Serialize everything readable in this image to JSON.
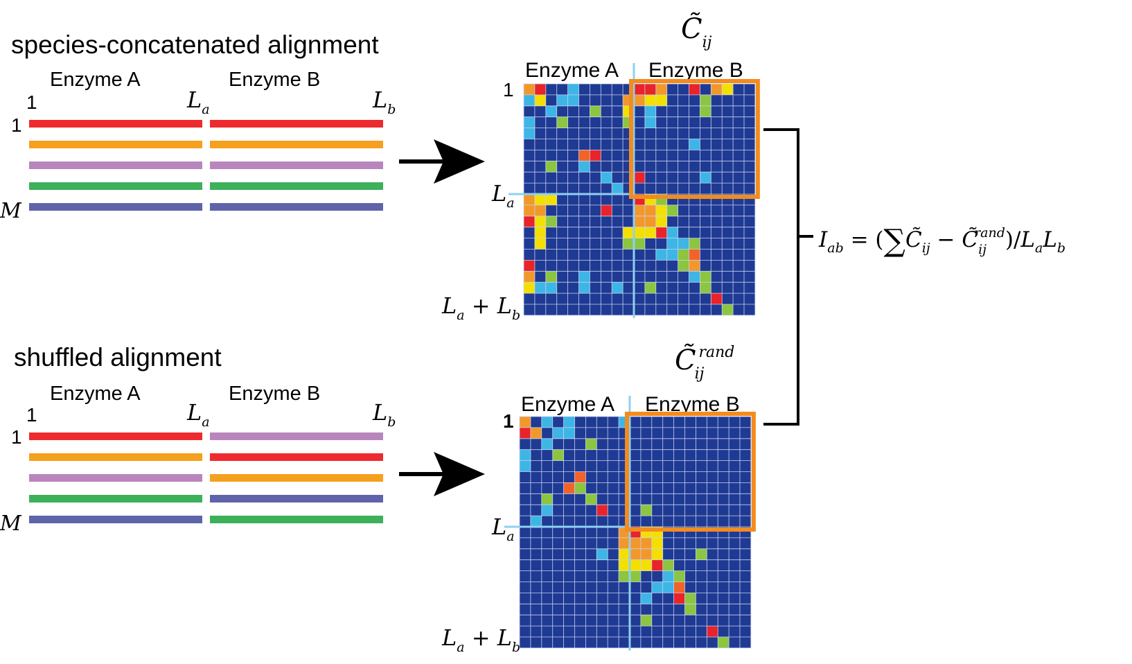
{
  "colors": {
    "red": "#ee2a2e",
    "orange": "#f5a01e",
    "violet": "#b886bd",
    "green": "#3cb15a",
    "indigo": "#5e63aa",
    "matrix_bg": "#1f3a93",
    "cell_red": "#e8232a",
    "cell_orange": "#f2982a",
    "cell_yellow": "#f4e000",
    "cell_cyan": "#3db6e6",
    "cell_green": "#8cc540",
    "cell_redorange": "#f2632a",
    "highlight": "#f28c1e",
    "divider": "#8fd0f0"
  },
  "top_panel": {
    "title": "species-concatenated alignment",
    "enzyme_a": "Enzyme A",
    "enzyme_b": "Enzyme B",
    "col_start": "1",
    "row_start": "1",
    "row_end": "M",
    "la": "L",
    "la_sub": "a",
    "lb": "L",
    "lb_sub": "b",
    "rows_a": [
      "red",
      "orange",
      "violet",
      "green",
      "indigo"
    ],
    "rows_b": [
      "red",
      "orange",
      "violet",
      "green",
      "indigo"
    ]
  },
  "bottom_panel": {
    "title": "shuffled alignment",
    "enzyme_a": "Enzyme A",
    "enzyme_b": "Enzyme B",
    "col_start": "1",
    "row_start": "1",
    "row_end": "M",
    "la": "L",
    "la_sub": "a",
    "lb": "L",
    "lb_sub": "b",
    "rows_a": [
      "red",
      "orange",
      "violet",
      "green",
      "indigo"
    ],
    "rows_b": [
      "violet",
      "red",
      "orange",
      "indigo",
      "green"
    ]
  },
  "top_matrix": {
    "symbol": "C̃",
    "sub": "ij",
    "sup": "",
    "enzyme_a": "Enzyme A",
    "enzyme_b": "Enzyme B",
    "start": "1",
    "la": "L",
    "la_sub": "a",
    "end_l1": "L",
    "end_sub1": "a",
    "end_plus": " + ",
    "end_l2": "L",
    "end_sub2": "b"
  },
  "bottom_matrix": {
    "symbol": "C̃",
    "sub": "ij",
    "sup": "rand",
    "enzyme_a": "Enzyme A",
    "enzyme_b": "Enzyme B",
    "start": "1",
    "la": "L",
    "la_sub": "a",
    "end_l1": "L",
    "end_sub1": "a",
    "end_plus": " + ",
    "end_l2": "L",
    "end_sub2": "b"
  },
  "formula": {
    "lhs": "I",
    "lhs_sub": "ab",
    "eq": " = (",
    "sum": "∑",
    "c1": "C̃",
    "c1_sub": "ij",
    "minus": " − ",
    "c2": "C̃",
    "c2_sub": "ij",
    "c2_sup": "rand",
    "close": ")/",
    "la": "L",
    "la_sub": "a",
    "lb": "L",
    "lb_sub": "b"
  },
  "top_cells": [
    [
      0,
      0,
      "cell_orange"
    ],
    [
      0,
      1,
      "cell_red"
    ],
    [
      0,
      4,
      "cell_cyan"
    ],
    [
      0,
      10,
      "cell_red"
    ],
    [
      0,
      11,
      "cell_red"
    ],
    [
      0,
      12,
      "cell_orange"
    ],
    [
      0,
      15,
      "cell_red"
    ],
    [
      0,
      17,
      "cell_orange"
    ],
    [
      0,
      18,
      "cell_yellow"
    ],
    [
      1,
      0,
      "cell_cyan"
    ],
    [
      1,
      1,
      "cell_yellow"
    ],
    [
      1,
      3,
      "cell_cyan"
    ],
    [
      1,
      4,
      "cell_cyan"
    ],
    [
      1,
      9,
      "cell_orange"
    ],
    [
      1,
      10,
      "cell_orange"
    ],
    [
      1,
      11,
      "cell_yellow"
    ],
    [
      1,
      12,
      "cell_yellow"
    ],
    [
      1,
      16,
      "cell_green"
    ],
    [
      2,
      2,
      "cell_cyan"
    ],
    [
      2,
      6,
      "cell_green"
    ],
    [
      2,
      9,
      "cell_yellow"
    ],
    [
      2,
      11,
      "cell_cyan"
    ],
    [
      2,
      16,
      "cell_green"
    ],
    [
      3,
      0,
      "cell_cyan"
    ],
    [
      3,
      3,
      "cell_green"
    ],
    [
      3,
      9,
      "cell_green"
    ],
    [
      3,
      11,
      "cell_cyan"
    ],
    [
      4,
      0,
      "cell_cyan"
    ],
    [
      5,
      15,
      "cell_cyan"
    ],
    [
      6,
      5,
      "cell_redorange"
    ],
    [
      6,
      6,
      "cell_red"
    ],
    [
      7,
      2,
      "cell_green"
    ],
    [
      7,
      5,
      "cell_cyan"
    ],
    [
      8,
      7,
      "cell_cyan"
    ],
    [
      8,
      10,
      "cell_red"
    ],
    [
      8,
      16,
      "cell_cyan"
    ],
    [
      9,
      8,
      "cell_cyan"
    ],
    [
      10,
      0,
      "cell_orange"
    ],
    [
      10,
      1,
      "cell_yellow"
    ],
    [
      10,
      2,
      "cell_yellow"
    ],
    [
      10,
      10,
      "cell_red"
    ],
    [
      10,
      11,
      "cell_yellow"
    ],
    [
      10,
      12,
      "cell_green"
    ],
    [
      11,
      0,
      "cell_orange"
    ],
    [
      11,
      1,
      "cell_orange"
    ],
    [
      11,
      7,
      "cell_red"
    ],
    [
      11,
      10,
      "cell_orange"
    ],
    [
      11,
      11,
      "cell_orange"
    ],
    [
      11,
      12,
      "cell_yellow"
    ],
    [
      11,
      13,
      "cell_green"
    ],
    [
      12,
      0,
      "cell_red"
    ],
    [
      12,
      1,
      "cell_yellow"
    ],
    [
      12,
      2,
      "cell_green"
    ],
    [
      12,
      10,
      "cell_orange"
    ],
    [
      12,
      11,
      "cell_orange"
    ],
    [
      12,
      12,
      "cell_yellow"
    ],
    [
      13,
      1,
      "cell_yellow"
    ],
    [
      13,
      9,
      "cell_yellow"
    ],
    [
      13,
      10,
      "cell_yellow"
    ],
    [
      13,
      11,
      "cell_yellow"
    ],
    [
      13,
      12,
      "cell_red"
    ],
    [
      13,
      13,
      "cell_cyan"
    ],
    [
      14,
      1,
      "cell_yellow"
    ],
    [
      14,
      9,
      "cell_green"
    ],
    [
      14,
      10,
      "cell_green"
    ],
    [
      14,
      13,
      "cell_cyan"
    ],
    [
      14,
      14,
      "cell_cyan"
    ],
    [
      14,
      15,
      "cell_green"
    ],
    [
      15,
      12,
      "cell_cyan"
    ],
    [
      15,
      13,
      "cell_cyan"
    ],
    [
      15,
      14,
      "cell_green"
    ],
    [
      15,
      15,
      "cell_redorange"
    ],
    [
      16,
      0,
      "cell_red"
    ],
    [
      16,
      14,
      "cell_green"
    ],
    [
      16,
      15,
      "cell_orange"
    ],
    [
      17,
      0,
      "cell_orange"
    ],
    [
      17,
      2,
      "cell_green"
    ],
    [
      17,
      5,
      "cell_cyan"
    ],
    [
      17,
      15,
      "cell_cyan"
    ],
    [
      17,
      16,
      "cell_green"
    ],
    [
      18,
      0,
      "cell_yellow"
    ],
    [
      18,
      1,
      "cell_cyan"
    ],
    [
      18,
      2,
      "cell_cyan"
    ],
    [
      18,
      5,
      "cell_cyan"
    ],
    [
      18,
      8,
      "cell_cyan"
    ],
    [
      18,
      11,
      "cell_green"
    ],
    [
      18,
      16,
      "cell_green"
    ],
    [
      19,
      17,
      "cell_red"
    ],
    [
      20,
      18,
      "cell_green"
    ]
  ],
  "bottom_cells": [
    [
      0,
      0,
      "cell_orange"
    ],
    [
      0,
      2,
      "cell_cyan"
    ],
    [
      0,
      4,
      "cell_cyan"
    ],
    [
      0,
      9,
      "cell_cyan"
    ],
    [
      1,
      0,
      "cell_red"
    ],
    [
      1,
      1,
      "cell_orange"
    ],
    [
      1,
      3,
      "cell_cyan"
    ],
    [
      1,
      4,
      "cell_cyan"
    ],
    [
      2,
      2,
      "cell_cyan"
    ],
    [
      2,
      6,
      "cell_green"
    ],
    [
      3,
      0,
      "cell_cyan"
    ],
    [
      3,
      3,
      "cell_green"
    ],
    [
      4,
      0,
      "cell_cyan"
    ],
    [
      5,
      5,
      "cell_redorange"
    ],
    [
      6,
      4,
      "cell_redorange"
    ],
    [
      6,
      5,
      "cell_green"
    ],
    [
      7,
      2,
      "cell_green"
    ],
    [
      7,
      6,
      "cell_green"
    ],
    [
      8,
      7,
      "cell_red"
    ],
    [
      8,
      2,
      "cell_cyan"
    ],
    [
      8,
      11,
      "cell_green"
    ],
    [
      9,
      1,
      "cell_cyan"
    ],
    [
      10,
      9,
      "cell_orange"
    ],
    [
      10,
      10,
      "cell_red"
    ],
    [
      10,
      11,
      "cell_yellow"
    ],
    [
      10,
      12,
      "cell_yellow"
    ],
    [
      11,
      9,
      "cell_orange"
    ],
    [
      11,
      10,
      "cell_orange"
    ],
    [
      11,
      11,
      "cell_orange"
    ],
    [
      11,
      12,
      "cell_yellow"
    ],
    [
      12,
      7,
      "cell_cyan"
    ],
    [
      12,
      9,
      "cell_yellow"
    ],
    [
      12,
      10,
      "cell_orange"
    ],
    [
      12,
      11,
      "cell_orange"
    ],
    [
      12,
      12,
      "cell_yellow"
    ],
    [
      12,
      16,
      "cell_green"
    ],
    [
      13,
      9,
      "cell_yellow"
    ],
    [
      13,
      10,
      "cell_yellow"
    ],
    [
      13,
      11,
      "cell_yellow"
    ],
    [
      13,
      12,
      "cell_red"
    ],
    [
      13,
      13,
      "cell_green"
    ],
    [
      14,
      9,
      "cell_green"
    ],
    [
      14,
      10,
      "cell_green"
    ],
    [
      14,
      13,
      "cell_cyan"
    ],
    [
      14,
      14,
      "cell_green"
    ],
    [
      15,
      12,
      "cell_cyan"
    ],
    [
      15,
      13,
      "cell_cyan"
    ],
    [
      15,
      14,
      "cell_redorange"
    ],
    [
      16,
      11,
      "cell_cyan"
    ],
    [
      16,
      14,
      "cell_red"
    ],
    [
      16,
      15,
      "cell_green"
    ],
    [
      17,
      15,
      "cell_green"
    ],
    [
      18,
      11,
      "cell_green"
    ],
    [
      19,
      17,
      "cell_red"
    ],
    [
      20,
      18,
      "cell_green"
    ]
  ]
}
